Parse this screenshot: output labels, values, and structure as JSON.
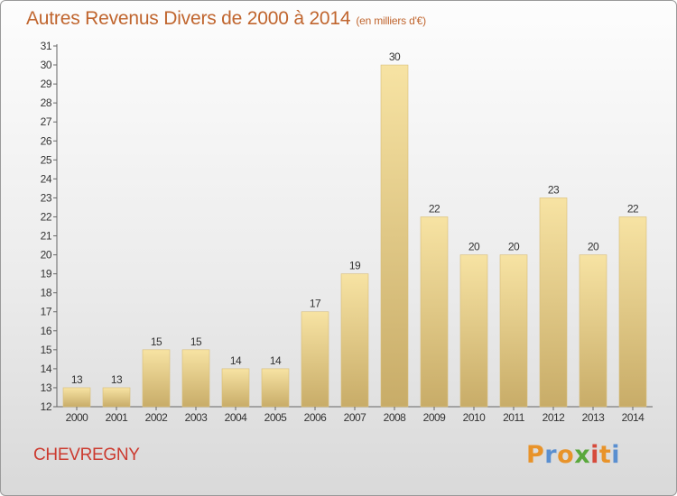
{
  "title": "Autres Revenus Divers de 2000 à 2014",
  "subtitle": "(en milliers d'€)",
  "commune": "CHEVREGNY",
  "brand": {
    "letters": [
      "P",
      "r",
      "o",
      "x",
      "i",
      "t",
      "i"
    ],
    "colors": [
      "#e8932a",
      "#5a8fd0",
      "#e8932a",
      "#5aa83c",
      "#d64b3c",
      "#e8932a",
      "#5a8fd0"
    ]
  },
  "colors": {
    "title": "#c0652e",
    "commune": "#cc3a2f",
    "bar_top": "#f7e3a3",
    "bar_bottom": "#c8ac68",
    "bar_stroke": "#d8bd78",
    "axis": "#666666",
    "label": "#333333"
  },
  "chart_data": {
    "type": "bar",
    "categories": [
      "2000",
      "2001",
      "2002",
      "2003",
      "2004",
      "2005",
      "2006",
      "2007",
      "2008",
      "2009",
      "2010",
      "2011",
      "2012",
      "2013",
      "2014"
    ],
    "values": [
      13,
      13,
      15,
      15,
      14,
      14,
      17,
      19,
      30,
      22,
      20,
      20,
      23,
      20,
      22
    ],
    "ylim": [
      12,
      31
    ],
    "yticks": [
      12,
      13,
      14,
      15,
      16,
      17,
      18,
      19,
      20,
      21,
      22,
      23,
      24,
      25,
      26,
      27,
      28,
      29,
      30,
      31
    ],
    "grid": false,
    "data_labels": true,
    "xlabel": "",
    "ylabel": ""
  }
}
